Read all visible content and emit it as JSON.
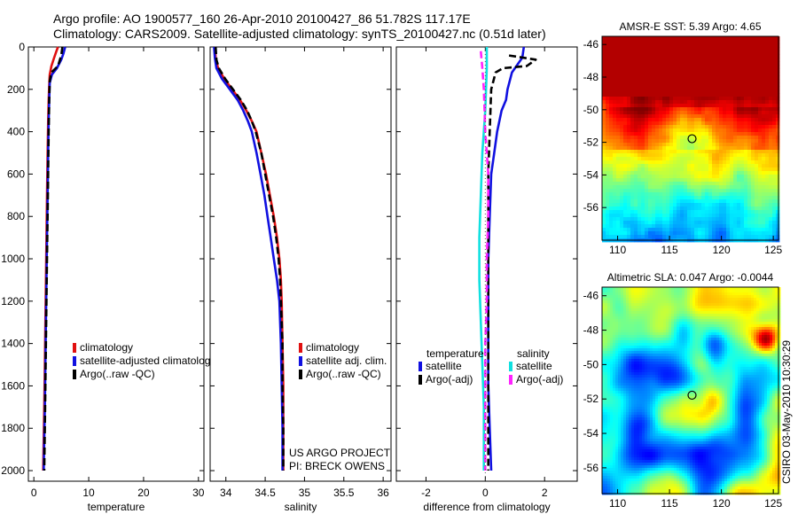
{
  "header": {
    "title_line1": "Argo profile: AO 1900577_160 26-Apr-2010 20100427_86 51.782S 117.17E",
    "title_line2": "Climatology: CARS2009. Satellite-adjusted climatology: synTS_20100427.nc (0.51d later)"
  },
  "colors": {
    "climatology": "#e01010",
    "satellite": "#1010e0",
    "argo": "#000000",
    "satellite_salinity": "#10e0e0",
    "argo_salinity": "#ff22ff",
    "marker": "#000000"
  },
  "chart_data": [
    {
      "id": "temperature",
      "type": "line",
      "xlabel": "temperature",
      "ylabel": "",
      "xlim": [
        -1,
        31
      ],
      "ylim": [
        2050,
        0
      ],
      "y_reversed": true,
      "xticks": [
        0,
        10,
        20,
        30
      ],
      "yticks": [
        0,
        200,
        400,
        600,
        800,
        1000,
        1200,
        1400,
        1600,
        1800,
        2000
      ],
      "legend": {
        "position": "lower-center",
        "entries": [
          "climatology",
          "satellite-adjusted climatolog",
          "Argo(..raw -QC)"
        ]
      },
      "series": [
        {
          "name": "climatology",
          "color": "#e01010",
          "dash": false,
          "points": [
            [
              4.4,
              0
            ],
            [
              4.1,
              20
            ],
            [
              3.7,
              50
            ],
            [
              3.2,
              90
            ],
            [
              2.9,
              130
            ],
            [
              2.8,
              180
            ],
            [
              2.7,
              250
            ],
            [
              2.6,
              350
            ],
            [
              2.5,
              500
            ],
            [
              2.4,
              700
            ],
            [
              2.3,
              900
            ],
            [
              2.2,
              1100
            ],
            [
              2.1,
              1300
            ],
            [
              2.0,
              1500
            ],
            [
              1.9,
              1700
            ],
            [
              1.8,
              1850
            ],
            [
              1.7,
              2000
            ]
          ]
        },
        {
          "name": "satellite-adjusted climatolog",
          "color": "#1010e0",
          "dash": false,
          "points": [
            [
              5.7,
              0
            ],
            [
              5.4,
              30
            ],
            [
              5.0,
              60
            ],
            [
              4.2,
              100
            ],
            [
              3.3,
              130
            ],
            [
              2.9,
              170
            ],
            [
              2.8,
              250
            ],
            [
              2.7,
              350
            ],
            [
              2.6,
              500
            ],
            [
              2.5,
              700
            ],
            [
              2.4,
              900
            ],
            [
              2.3,
              1100
            ],
            [
              2.2,
              1300
            ],
            [
              2.1,
              1500
            ],
            [
              2.0,
              1700
            ],
            [
              1.9,
              1850
            ],
            [
              1.8,
              2000
            ]
          ]
        },
        {
          "name": "Argo(..raw -QC)",
          "color": "#000000",
          "dash": true,
          "points": [
            [
              5.2,
              0
            ],
            [
              5.0,
              40
            ],
            [
              4.4,
              90
            ],
            [
              3.2,
              120
            ],
            [
              2.9,
              160
            ],
            [
              2.8,
              250
            ],
            [
              2.7,
              400
            ],
            [
              2.6,
              600
            ],
            [
              2.5,
              800
            ],
            [
              2.4,
              1000
            ],
            [
              2.3,
              1200
            ],
            [
              2.2,
              1400
            ],
            [
              2.1,
              1600
            ],
            [
              2.0,
              1800
            ],
            [
              1.9,
              2000
            ]
          ]
        }
      ]
    },
    {
      "id": "salinity",
      "type": "line",
      "xlabel": "salinity",
      "ylabel": "",
      "xlim": [
        33.8,
        36.1
      ],
      "ylim": [
        2050,
        0
      ],
      "y_reversed": true,
      "xticks": [
        34,
        34.5,
        35,
        35.5,
        36
      ],
      "tick_labels": [
        "34",
        "34.5",
        "35",
        "35.5",
        "36"
      ],
      "legend": {
        "position": "lower-right",
        "entries": [
          "climatology",
          "satellite adj. clim.",
          "Argo(..raw -QC)"
        ]
      },
      "annotation_lines": [
        "US ARGO PROJECT",
        "PI: BRECK OWENS"
      ],
      "series": [
        {
          "name": "climatology",
          "color": "#e01010",
          "dash": false,
          "points": [
            [
              33.86,
              0
            ],
            [
              33.87,
              50
            ],
            [
              33.9,
              100
            ],
            [
              33.98,
              150
            ],
            [
              34.08,
              200
            ],
            [
              34.18,
              250
            ],
            [
              34.26,
              300
            ],
            [
              34.33,
              350
            ],
            [
              34.39,
              400
            ],
            [
              34.45,
              500
            ],
            [
              34.51,
              600
            ],
            [
              34.56,
              700
            ],
            [
              34.61,
              800
            ],
            [
              34.65,
              900
            ],
            [
              34.68,
              1000
            ],
            [
              34.7,
              1100
            ],
            [
              34.71,
              1200
            ],
            [
              34.72,
              1400
            ],
            [
              34.73,
              1600
            ],
            [
              34.73,
              1800
            ],
            [
              34.73,
              2000
            ]
          ]
        },
        {
          "name": "satellite adj. clim.",
          "color": "#1010e0",
          "dash": false,
          "points": [
            [
              33.85,
              0
            ],
            [
              33.86,
              50
            ],
            [
              33.88,
              100
            ],
            [
              33.95,
              150
            ],
            [
              34.05,
              200
            ],
            [
              34.15,
              250
            ],
            [
              34.22,
              300
            ],
            [
              34.28,
              350
            ],
            [
              34.33,
              400
            ],
            [
              34.39,
              500
            ],
            [
              34.44,
              600
            ],
            [
              34.49,
              700
            ],
            [
              34.53,
              800
            ],
            [
              34.57,
              900
            ],
            [
              34.61,
              1000
            ],
            [
              34.65,
              1100
            ],
            [
              34.68,
              1200
            ],
            [
              34.7,
              1400
            ],
            [
              34.71,
              1600
            ],
            [
              34.72,
              1800
            ],
            [
              34.72,
              2000
            ]
          ]
        },
        {
          "name": "Argo(..raw -QC)",
          "color": "#000000",
          "dash": true,
          "points": [
            [
              33.87,
              0
            ],
            [
              33.88,
              60
            ],
            [
              33.91,
              100
            ],
            [
              33.99,
              150
            ],
            [
              34.09,
              200
            ],
            [
              34.19,
              250
            ],
            [
              34.27,
              300
            ],
            [
              34.33,
              350
            ],
            [
              34.38,
              400
            ],
            [
              34.45,
              500
            ],
            [
              34.5,
              600
            ],
            [
              34.55,
              700
            ],
            [
              34.6,
              800
            ],
            [
              34.64,
              900
            ],
            [
              34.67,
              1000
            ],
            [
              34.69,
              1100
            ],
            [
              34.7,
              1200
            ],
            [
              34.72,
              1400
            ],
            [
              34.72,
              1600
            ],
            [
              34.73,
              1800
            ],
            [
              34.73,
              2000
            ]
          ]
        }
      ]
    },
    {
      "id": "difference",
      "type": "line",
      "xlabel": "difference from climatology",
      "ylabel": "",
      "xlim": [
        -3,
        3.1
      ],
      "ylim": [
        2050,
        0
      ],
      "y_reversed": true,
      "xticks": [
        -2,
        0,
        2
      ],
      "legend": {
        "position": "lower-center",
        "headings": [
          "temperature",
          "salinity"
        ],
        "entries": [
          "satellite",
          "Argo(-adj)",
          "satellite",
          "Argo(-adj)"
        ]
      },
      "series": [
        {
          "name": "satellite",
          "group": "temperature",
          "color": "#1010e0",
          "dash": false,
          "points": [
            [
              1.3,
              0
            ],
            [
              1.25,
              50
            ],
            [
              0.9,
              120
            ],
            [
              0.75,
              200
            ],
            [
              0.7,
              250
            ],
            [
              0.55,
              300
            ],
            [
              0.4,
              400
            ],
            [
              0.3,
              500
            ],
            [
              0.2,
              600
            ],
            [
              0.15,
              800
            ],
            [
              0.1,
              1000
            ],
            [
              0.1,
              1200
            ],
            [
              0.1,
              1400
            ],
            [
              0.1,
              1600
            ],
            [
              0.15,
              1800
            ],
            [
              0.2,
              2000
            ]
          ]
        },
        {
          "name": "Argo(-adj)",
          "group": "temperature",
          "color": "#000000",
          "dash": true,
          "points": [
            [
              0.8,
              40
            ],
            [
              1.7,
              60
            ],
            [
              1.4,
              90
            ],
            [
              0.6,
              100
            ],
            [
              0.35,
              120
            ],
            [
              0.2,
              200
            ],
            [
              0.15,
              400
            ],
            [
              0.1,
              600
            ],
            [
              0.1,
              800
            ],
            [
              0.1,
              1000
            ],
            [
              0.1,
              1200
            ],
            [
              0.1,
              1400
            ],
            [
              0.1,
              1600
            ],
            [
              0.1,
              1800
            ],
            [
              0.1,
              2000
            ]
          ]
        },
        {
          "name": "satellite",
          "group": "salinity",
          "color": "#10e0e0",
          "dash": false,
          "points": [
            [
              0.05,
              0
            ],
            [
              0.05,
              100
            ],
            [
              0.0,
              300
            ],
            [
              -0.1,
              500
            ],
            [
              -0.15,
              700
            ],
            [
              -0.2,
              900
            ],
            [
              -0.2,
              1100
            ],
            [
              -0.15,
              1300
            ],
            [
              -0.1,
              1500
            ],
            [
              -0.05,
              1700
            ],
            [
              -0.05,
              1900
            ],
            [
              -0.05,
              2000
            ]
          ]
        },
        {
          "name": "Argo(-adj)",
          "group": "salinity",
          "color": "#ff22ff",
          "dash": true,
          "points": [
            [
              -0.15,
              20
            ],
            [
              -0.1,
              100
            ],
            [
              -0.05,
              200
            ],
            [
              0.0,
              400
            ],
            [
              0.1,
              600
            ],
            [
              0.1,
              800
            ],
            [
              0.05,
              1000
            ],
            [
              0.05,
              1200
            ],
            [
              0.0,
              1400
            ],
            [
              0.0,
              1600
            ],
            [
              0.0,
              1800
            ],
            [
              0.0,
              2000
            ]
          ]
        }
      ]
    },
    {
      "id": "sst-map",
      "type": "heatmap",
      "title": "AMSR-E SST: 5.39 Argo: 4.65",
      "xlim": [
        108.5,
        125.5
      ],
      "ylim": [
        -58,
        -45.5
      ],
      "xticks": [
        110,
        115,
        120,
        125
      ],
      "yticks": [
        -46,
        -48,
        -50,
        -52,
        -54,
        -56
      ],
      "marker": {
        "lon": 117.17,
        "lat": -51.78
      }
    },
    {
      "id": "sla-map",
      "type": "heatmap",
      "title": "Altimetric SLA: 0.047 Argo: -0.0044",
      "xlim": [
        108.5,
        125.5
      ],
      "ylim": [
        -57.5,
        -45.5
      ],
      "xticks": [
        110,
        115,
        120,
        125
      ],
      "yticks": [
        -46,
        -48,
        -50,
        -52,
        -54,
        -56
      ],
      "marker": {
        "lon": 117.17,
        "lat": -51.78
      }
    }
  ],
  "footer": {
    "vertical_stamp": "CSIRO 03-May-2010 10:30:29"
  }
}
